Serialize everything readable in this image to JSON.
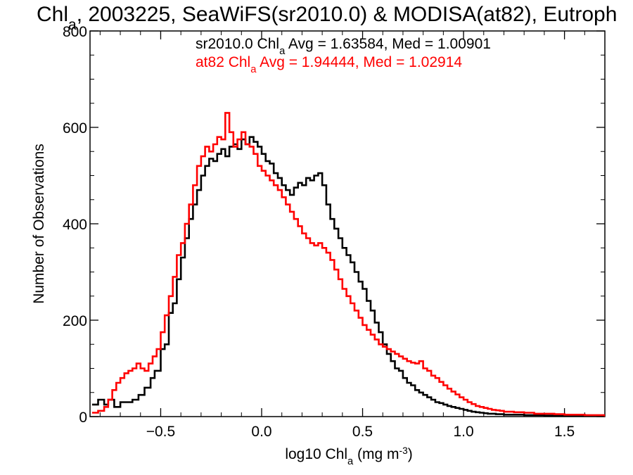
{
  "chart_data": {
    "type": "line",
    "step": true,
    "title": {
      "parts": [
        {
          "text": "Chl"
        },
        {
          "text": "a",
          "sub": true
        },
        {
          "text": ", 2003225, SeaWiFS(sr2010.0) & MODISA(at82), Eutroph"
        }
      ]
    },
    "xlabel": {
      "parts": [
        {
          "text": "log10 Chl"
        },
        {
          "text": "a",
          "sub": true
        },
        {
          "text": " (mg m"
        },
        {
          "text": "-3",
          "sup": true
        },
        {
          "text": ")"
        }
      ]
    },
    "ylabel": "Number of Observations",
    "xlim": [
      -0.85,
      1.7
    ],
    "ylim": [
      0,
      800
    ],
    "xticks": [
      -0.5,
      0.0,
      0.5,
      1.0,
      1.5
    ],
    "xtick_labels": [
      "−0.5",
      "0.0",
      "0.5",
      "1.0",
      "1.5"
    ],
    "yticks": [
      0,
      200,
      400,
      600,
      800
    ],
    "ytick_labels": [
      "0",
      "200",
      "400",
      "600",
      "800"
    ],
    "grid": false,
    "legend_position": "top-center",
    "series": [
      {
        "color": "#000000",
        "annotation": [
          {
            "text": "sr2010.0 Chl"
          },
          {
            "text": "a",
            "sub": true
          },
          {
            "text": " Avg = 1.63584, Med = 1.00901"
          }
        ],
        "points": [
          [
            -0.84,
            25
          ],
          [
            -0.81,
            35
          ],
          [
            -0.78,
            25
          ],
          [
            -0.76,
            35
          ],
          [
            -0.73,
            20
          ],
          [
            -0.7,
            30
          ],
          [
            -0.67,
            30
          ],
          [
            -0.64,
            35
          ],
          [
            -0.61,
            45
          ],
          [
            -0.58,
            60
          ],
          [
            -0.55,
            80
          ],
          [
            -0.53,
            95
          ],
          [
            -0.5,
            140
          ],
          [
            -0.48,
            150
          ],
          [
            -0.46,
            215
          ],
          [
            -0.44,
            235
          ],
          [
            -0.42,
            285
          ],
          [
            -0.4,
            330
          ],
          [
            -0.38,
            370
          ],
          [
            -0.36,
            410
          ],
          [
            -0.34,
            440
          ],
          [
            -0.32,
            470
          ],
          [
            -0.3,
            500
          ],
          [
            -0.28,
            520
          ],
          [
            -0.26,
            535
          ],
          [
            -0.24,
            530
          ],
          [
            -0.22,
            545
          ],
          [
            -0.2,
            555
          ],
          [
            -0.18,
            540
          ],
          [
            -0.16,
            560
          ],
          [
            -0.14,
            565
          ],
          [
            -0.12,
            555
          ],
          [
            -0.1,
            575
          ],
          [
            -0.08,
            565
          ],
          [
            -0.06,
            580
          ],
          [
            -0.04,
            570
          ],
          [
            -0.02,
            560
          ],
          [
            0.0,
            545
          ],
          [
            0.02,
            530
          ],
          [
            0.04,
            525
          ],
          [
            0.06,
            505
          ],
          [
            0.08,
            495
          ],
          [
            0.1,
            480
          ],
          [
            0.12,
            470
          ],
          [
            0.14,
            460
          ],
          [
            0.16,
            475
          ],
          [
            0.18,
            485
          ],
          [
            0.2,
            480
          ],
          [
            0.22,
            495
          ],
          [
            0.24,
            490
          ],
          [
            0.26,
            500
          ],
          [
            0.28,
            505
          ],
          [
            0.3,
            480
          ],
          [
            0.32,
            440
          ],
          [
            0.34,
            410
          ],
          [
            0.36,
            390
          ],
          [
            0.38,
            370
          ],
          [
            0.4,
            350
          ],
          [
            0.42,
            335
          ],
          [
            0.44,
            320
          ],
          [
            0.46,
            300
          ],
          [
            0.48,
            280
          ],
          [
            0.5,
            265
          ],
          [
            0.52,
            240
          ],
          [
            0.54,
            220
          ],
          [
            0.56,
            195
          ],
          [
            0.58,
            175
          ],
          [
            0.6,
            150
          ],
          [
            0.62,
            130
          ],
          [
            0.64,
            115
          ],
          [
            0.66,
            100
          ],
          [
            0.68,
            95
          ],
          [
            0.7,
            80
          ],
          [
            0.72,
            70
          ],
          [
            0.74,
            65
          ],
          [
            0.76,
            55
          ],
          [
            0.78,
            50
          ],
          [
            0.8,
            45
          ],
          [
            0.82,
            40
          ],
          [
            0.84,
            35
          ],
          [
            0.86,
            30
          ],
          [
            0.88,
            28
          ],
          [
            0.9,
            25
          ],
          [
            0.92,
            22
          ],
          [
            0.94,
            20
          ],
          [
            0.96,
            18
          ],
          [
            0.98,
            16
          ],
          [
            1.0,
            14
          ],
          [
            1.02,
            12
          ],
          [
            1.04,
            10
          ],
          [
            1.06,
            9
          ],
          [
            1.08,
            8
          ],
          [
            1.1,
            7
          ],
          [
            1.12,
            6
          ],
          [
            1.14,
            6
          ],
          [
            1.16,
            5
          ],
          [
            1.18,
            5
          ],
          [
            1.2,
            4
          ],
          [
            1.25,
            4
          ],
          [
            1.3,
            3
          ],
          [
            1.35,
            3
          ],
          [
            1.4,
            2
          ],
          [
            1.45,
            2
          ],
          [
            1.5,
            2
          ],
          [
            1.55,
            1
          ],
          [
            1.6,
            1
          ],
          [
            1.65,
            1
          ],
          [
            1.7,
            1
          ]
        ]
      },
      {
        "color": "#ff0000",
        "annotation": [
          {
            "text": "at82 Chl"
          },
          {
            "text": "a",
            "sub": true
          },
          {
            "text": " Avg = 1.94444, Med = 1.02914"
          }
        ],
        "points": [
          [
            -0.84,
            8
          ],
          [
            -0.81,
            12
          ],
          [
            -0.78,
            20
          ],
          [
            -0.76,
            35
          ],
          [
            -0.74,
            55
          ],
          [
            -0.72,
            70
          ],
          [
            -0.7,
            80
          ],
          [
            -0.68,
            90
          ],
          [
            -0.66,
            95
          ],
          [
            -0.64,
            100
          ],
          [
            -0.62,
            110
          ],
          [
            -0.6,
            100
          ],
          [
            -0.58,
            95
          ],
          [
            -0.56,
            110
          ],
          [
            -0.54,
            125
          ],
          [
            -0.52,
            140
          ],
          [
            -0.5,
            175
          ],
          [
            -0.48,
            210
          ],
          [
            -0.46,
            250
          ],
          [
            -0.44,
            290
          ],
          [
            -0.42,
            335
          ],
          [
            -0.4,
            360
          ],
          [
            -0.38,
            400
          ],
          [
            -0.36,
            440
          ],
          [
            -0.34,
            480
          ],
          [
            -0.32,
            520
          ],
          [
            -0.3,
            540
          ],
          [
            -0.28,
            560
          ],
          [
            -0.26,
            550
          ],
          [
            -0.24,
            565
          ],
          [
            -0.22,
            580
          ],
          [
            -0.2,
            575
          ],
          [
            -0.18,
            630
          ],
          [
            -0.16,
            590
          ],
          [
            -0.14,
            560
          ],
          [
            -0.12,
            575
          ],
          [
            -0.1,
            590
          ],
          [
            -0.08,
            565
          ],
          [
            -0.06,
            560
          ],
          [
            -0.04,
            545
          ],
          [
            -0.02,
            520
          ],
          [
            0.0,
            510
          ],
          [
            0.02,
            500
          ],
          [
            0.04,
            490
          ],
          [
            0.06,
            480
          ],
          [
            0.08,
            470
          ],
          [
            0.1,
            455
          ],
          [
            0.12,
            440
          ],
          [
            0.14,
            425
          ],
          [
            0.16,
            410
          ],
          [
            0.18,
            395
          ],
          [
            0.2,
            380
          ],
          [
            0.22,
            370
          ],
          [
            0.24,
            360
          ],
          [
            0.26,
            355
          ],
          [
            0.28,
            360
          ],
          [
            0.3,
            350
          ],
          [
            0.32,
            340
          ],
          [
            0.34,
            325
          ],
          [
            0.36,
            305
          ],
          [
            0.38,
            285
          ],
          [
            0.4,
            265
          ],
          [
            0.42,
            250
          ],
          [
            0.44,
            235
          ],
          [
            0.46,
            220
          ],
          [
            0.48,
            205
          ],
          [
            0.5,
            190
          ],
          [
            0.52,
            180
          ],
          [
            0.54,
            170
          ],
          [
            0.56,
            160
          ],
          [
            0.58,
            150
          ],
          [
            0.6,
            145
          ],
          [
            0.62,
            140
          ],
          [
            0.64,
            135
          ],
          [
            0.66,
            130
          ],
          [
            0.68,
            125
          ],
          [
            0.7,
            120
          ],
          [
            0.72,
            115
          ],
          [
            0.74,
            112
          ],
          [
            0.76,
            110
          ],
          [
            0.78,
            115
          ],
          [
            0.8,
            100
          ],
          [
            0.82,
            95
          ],
          [
            0.84,
            85
          ],
          [
            0.86,
            80
          ],
          [
            0.88,
            72
          ],
          [
            0.9,
            65
          ],
          [
            0.92,
            58
          ],
          [
            0.94,
            52
          ],
          [
            0.96,
            46
          ],
          [
            0.98,
            40
          ],
          [
            1.0,
            35
          ],
          [
            1.02,
            30
          ],
          [
            1.04,
            26
          ],
          [
            1.06,
            22
          ],
          [
            1.08,
            20
          ],
          [
            1.1,
            18
          ],
          [
            1.12,
            16
          ],
          [
            1.14,
            14
          ],
          [
            1.16,
            13
          ],
          [
            1.18,
            12
          ],
          [
            1.2,
            10
          ],
          [
            1.25,
            9
          ],
          [
            1.3,
            8
          ],
          [
            1.35,
            6
          ],
          [
            1.4,
            6
          ],
          [
            1.45,
            5
          ],
          [
            1.5,
            4
          ],
          [
            1.55,
            4
          ],
          [
            1.6,
            3
          ],
          [
            1.65,
            3
          ],
          [
            1.7,
            2
          ]
        ]
      }
    ]
  }
}
